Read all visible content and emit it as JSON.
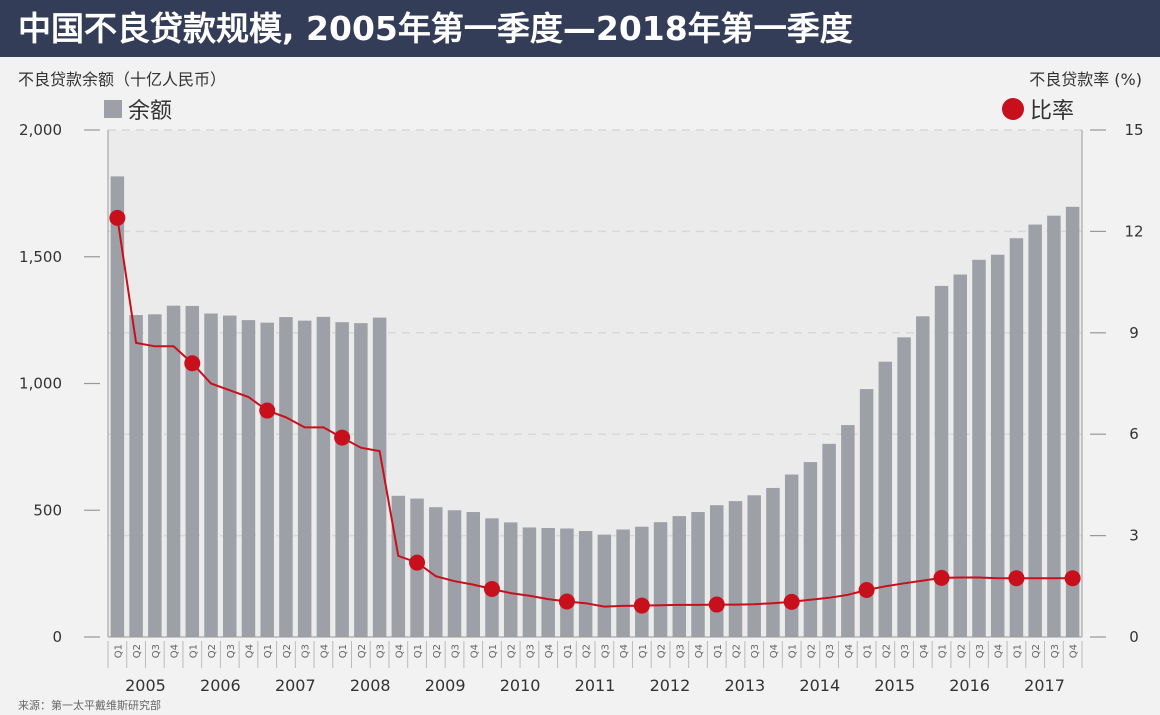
{
  "title": "中国不良贷款规模, 2005年第一季度—2018年第一季度",
  "source": "来源：第一太平戴维斯研究部",
  "chart_data": {
    "type": "bar+line",
    "title": "中国不良贷款规模, 2005年第一季度—2018年第一季度",
    "ylabel_left": "不良贷款余额（十亿人民币）",
    "ylabel_right": "不良贷款率 (%)",
    "ylim_left": [
      0,
      2000
    ],
    "ylim_right": [
      0,
      15
    ],
    "yticks_left": [
      "0",
      "500",
      "1,000",
      "1,500",
      "2,000"
    ],
    "yticks_left_values": [
      0,
      500,
      1000,
      1500,
      2000
    ],
    "yticks_right": [
      "0",
      "3",
      "6",
      "9",
      "12",
      "15"
    ],
    "yticks_right_values": [
      0,
      3,
      6,
      9,
      12,
      15
    ],
    "year_labels": [
      "2005",
      "2006",
      "2007",
      "2008",
      "2009",
      "2010",
      "2011",
      "2012",
      "2013",
      "2014",
      "2015",
      "2016",
      "2017"
    ],
    "quarter_labels": [
      "Q1",
      "Q2",
      "Q3",
      "Q4"
    ],
    "legend": [
      {
        "name": "余额",
        "color": "#9ea0a8",
        "type": "bar"
      },
      {
        "name": "比率",
        "color": "#c8101d",
        "type": "line"
      }
    ],
    "series": [
      {
        "name": "余额",
        "type": "bar",
        "values": [
          1817,
          1270,
          1273,
          1307,
          1306,
          1276,
          1268,
          1250,
          1240,
          1262,
          1248,
          1263,
          1242,
          1238,
          1260,
          557,
          546,
          512,
          500,
          493,
          468,
          452,
          432,
          430,
          428,
          418,
          404,
          424,
          435,
          453,
          477,
          493,
          520,
          536,
          559,
          588,
          641,
          690,
          762,
          836,
          978,
          1086,
          1182,
          1265,
          1385,
          1430,
          1488,
          1508,
          1573,
          1627,
          1662,
          1697
        ]
      },
      {
        "name": "比率",
        "type": "line",
        "values": [
          12.4,
          8.7,
          8.6,
          8.6,
          8.1,
          7.5,
          7.3,
          7.1,
          6.7,
          6.5,
          6.2,
          6.2,
          5.9,
          5.6,
          5.5,
          2.4,
          2.2,
          1.8,
          1.65,
          1.55,
          1.42,
          1.3,
          1.22,
          1.12,
          1.05,
          1.0,
          0.9,
          0.92,
          0.93,
          0.94,
          0.95,
          0.95,
          0.96,
          0.96,
          0.97,
          1.0,
          1.04,
          1.1,
          1.16,
          1.25,
          1.39,
          1.5,
          1.59,
          1.67,
          1.75,
          1.76,
          1.76,
          1.74,
          1.74,
          1.74,
          1.74,
          1.74
        ]
      }
    ],
    "markers_at_q4_index": [
      0,
      4,
      8,
      12,
      16,
      20,
      24,
      28,
      32,
      36,
      40,
      44,
      48,
      51
    ]
  }
}
